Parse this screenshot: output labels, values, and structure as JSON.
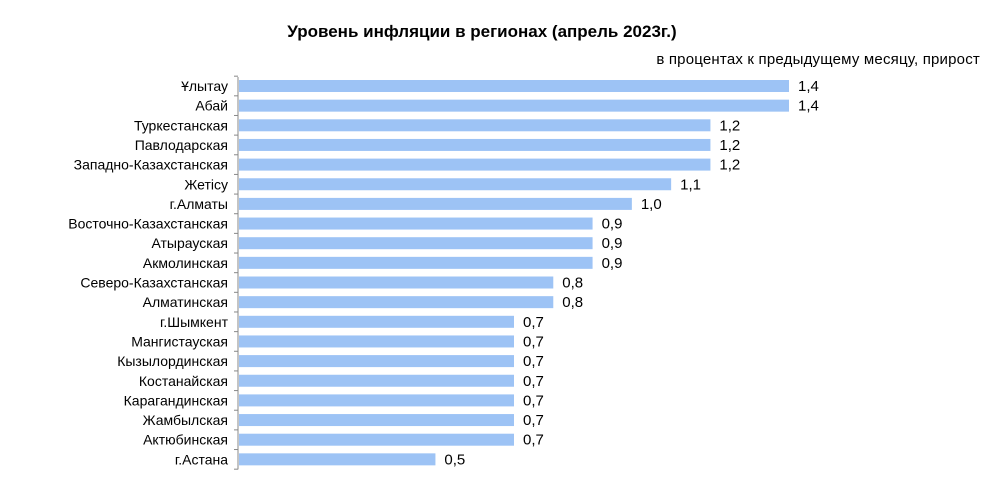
{
  "chart_data": {
    "type": "bar",
    "orientation": "horizontal",
    "title": "Уровень инфляции в регионах (апрель 2023г.)",
    "subtitle": "в процентах  к предыдущему  месяцу, прирост",
    "categories": [
      "Ұлытау",
      "Абай",
      "Туркестанская",
      "Павлодарская",
      "Западно-Казахстанская",
      "Жетісу",
      "г.Алматы",
      "Восточно-Казахстанская",
      "Атырауская ",
      "Акмолинская",
      "Северо-Казахстанская",
      "Алматинская",
      "г.Шымкент",
      "Мангистауская",
      "Кызылординская",
      "Костанайская",
      "Карагандинская",
      "Жамбылская ",
      "Актюбинская",
      "г.Астана"
    ],
    "values": [
      1.4,
      1.4,
      1.2,
      1.2,
      1.2,
      1.1,
      1.0,
      0.9,
      0.9,
      0.9,
      0.8,
      0.8,
      0.7,
      0.7,
      0.7,
      0.7,
      0.7,
      0.7,
      0.7,
      0.5
    ],
    "value_labels": [
      "1,4",
      "1,4",
      "1,2",
      "1,2",
      "1,2",
      "1,1",
      "1,0",
      "0,9",
      "0,9",
      "0,9",
      "0,8",
      "0,8",
      "0,7",
      "0,7",
      "0,7",
      "0,7",
      "0,7",
      "0,7",
      "0,7",
      "0,5"
    ],
    "xlim": [
      0,
      1.4
    ],
    "bar_color": "#9DC3F5",
    "axis_color": "#888888",
    "grid": false,
    "legend": "none"
  }
}
